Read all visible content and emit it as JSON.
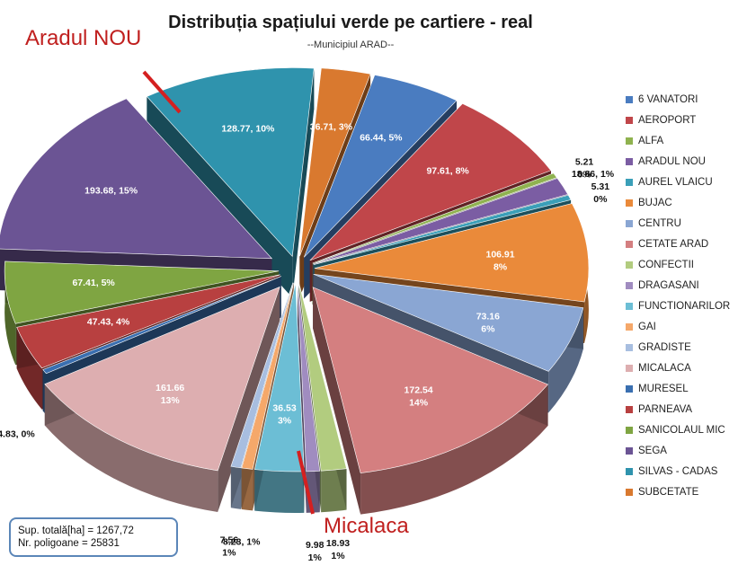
{
  "title": "Distribuția spațiului verde pe cartiere - real",
  "subtitle": "--Municipiul ARAD--",
  "callouts": {
    "aradul_nou": "Aradul NOU",
    "micalaca": "Micalaca"
  },
  "info_box": {
    "line1": "Sup. totală[ha] = 1267,72",
    "line2": "Nr. poligoane = 25831"
  },
  "chart_data": {
    "type": "pie",
    "title": "Distribuția spațiului verde pe cartiere - real",
    "subtitle": "--Municipiul ARAD--",
    "style": "3d-exploded",
    "legend_position": "right",
    "slices": [
      {
        "name": "6 VANATORI",
        "value": 66.44,
        "percent": 5,
        "label": "66.44, 5%",
        "color": "#4a7cc0"
      },
      {
        "name": "AEROPORT",
        "value": 97.61,
        "percent": 8,
        "label": "97.61, 8%",
        "color": "#c0464a"
      },
      {
        "name": "ALFA",
        "value": 5.21,
        "percent": 0,
        "label": "5.21 0%",
        "color": "#8fb24f"
      },
      {
        "name": "ARADUL NOU",
        "value": 18.86,
        "percent": 1,
        "label": "18.86, 1%",
        "color": "#7b5da3"
      },
      {
        "name": "AUREL VLAICU",
        "value": 5.31,
        "percent": 0,
        "label": "5.31 0%",
        "color": "#3a9fb8"
      },
      {
        "name": "BUJAC",
        "value": 106.91,
        "percent": 8,
        "label": "106.91 8%",
        "color": "#ea8a3a"
      },
      {
        "name": "CENTRU",
        "value": 73.16,
        "percent": 6,
        "label": "73.16 6%",
        "color": "#8aa6d3"
      },
      {
        "name": "CETATE ARAD",
        "value": 172.54,
        "percent": 14,
        "label": "172.54 14%",
        "color": "#d47f80"
      },
      {
        "name": "CONFECTII",
        "value": 18.93,
        "percent": 1,
        "label": "18.93 1%",
        "color": "#b2cc7f"
      },
      {
        "name": "DRAGASANI",
        "value": 9.98,
        "percent": 1,
        "label": "9.98 1%",
        "color": "#a08cc0"
      },
      {
        "name": "FUNCTIONARILOR",
        "value": 36.53,
        "percent": 3,
        "label": "36.53 3%",
        "color": "#6cbed5"
      },
      {
        "name": "GAI",
        "value": 8.23,
        "percent": 1,
        "label": "8.23, 1%",
        "color": "#f5a86a"
      },
      {
        "name": "GRADISTE",
        "value": 7.56,
        "percent": 1,
        "label": "7.56 1%",
        "color": "#a8bee0"
      },
      {
        "name": "MICALACA",
        "value": 161.66,
        "percent": 13,
        "label": "161.66 13%",
        "color": "#ddaeb0"
      },
      {
        "name": "MURESEL",
        "value": 4.83,
        "percent": 0,
        "label": "4.83, 0%",
        "color": "#3a6fb0"
      },
      {
        "name": "PARNEAVA",
        "value": 47.43,
        "percent": 4,
        "label": "47.43, 4%",
        "color": "#b84040"
      },
      {
        "name": "SANICOLAUL MIC",
        "value": 67.41,
        "percent": 5,
        "label": "67.41, 5%",
        "color": "#7fa542"
      },
      {
        "name": "SEGA",
        "value": 193.68,
        "percent": 15,
        "label": "193.68, 15%",
        "color": "#6b5494"
      },
      {
        "name": "SILVAS - CADAS",
        "value": 128.77,
        "percent": 10,
        "label": "128.77, 10%",
        "color": "#2f93ad"
      },
      {
        "name": "SUBCETATE",
        "value": 36.71,
        "percent": 3,
        "label": "36.71, 3%",
        "color": "#d9792f"
      }
    ]
  }
}
